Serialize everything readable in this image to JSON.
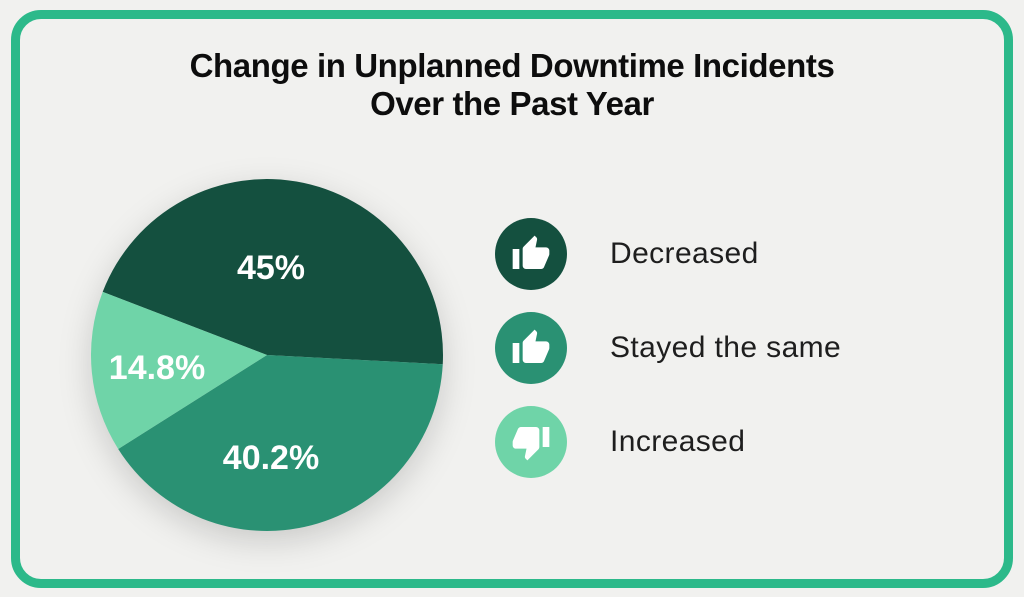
{
  "page": {
    "background_color": "#f1f1ef",
    "border_color": "#2cb98a",
    "text_color": "#0d0d0d"
  },
  "title": {
    "line1": "Change in Unplanned Downtime Incidents",
    "line2": "Over the Past Year"
  },
  "chart_data": {
    "type": "pie",
    "title": "Change in Unplanned Downtime Incidents Over the Past Year",
    "legend_position": "right",
    "start_angle_deg_from_top": -69,
    "value_label_color": "#ffffff",
    "slices": [
      {
        "label": "Decreased",
        "value": 45,
        "display": "45%",
        "color": "#14503f",
        "icon": "thumbs-up-icon"
      },
      {
        "label": "Stayed the same",
        "value": 40.2,
        "display": "40.2%",
        "color": "#2a9173",
        "icon": "thumbs-up-icon"
      },
      {
        "label": "Increased",
        "value": 14.8,
        "display": "14.8%",
        "color": "#6fd4a8",
        "icon": "thumbs-down-icon"
      }
    ]
  }
}
